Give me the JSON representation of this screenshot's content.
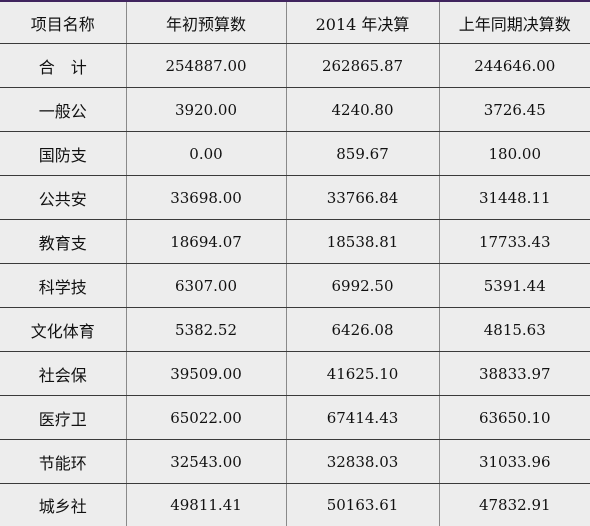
{
  "table": {
    "headers": [
      "项目名称",
      "年初预算数",
      "2014 年决算",
      "上年同期决算数"
    ],
    "rows": [
      {
        "name": "合　计",
        "budget": "254887.00",
        "final_2014": "262865.87",
        "prior": "244646.00"
      },
      {
        "name": "一般公",
        "budget": "3920.00",
        "final_2014": "4240.80",
        "prior": "3726.45"
      },
      {
        "name": "国防支",
        "budget": "0.00",
        "final_2014": "859.67",
        "prior": "180.00"
      },
      {
        "name": "公共安",
        "budget": "33698.00",
        "final_2014": "33766.84",
        "prior": "31448.11"
      },
      {
        "name": "教育支",
        "budget": "18694.07",
        "final_2014": "18538.81",
        "prior": "17733.43"
      },
      {
        "name": "科学技",
        "budget": "6307.00",
        "final_2014": "6992.50",
        "prior": "5391.44"
      },
      {
        "name": "文化体育",
        "budget": "5382.52",
        "final_2014": "6426.08",
        "prior": "4815.63"
      },
      {
        "name": "社会保",
        "budget": "39509.00",
        "final_2014": "41625.10",
        "prior": "38833.97"
      },
      {
        "name": "医疗卫",
        "budget": "65022.00",
        "final_2014": "67414.43",
        "prior": "63650.10"
      },
      {
        "name": "节能环",
        "budget": "32543.00",
        "final_2014": "32838.03",
        "prior": "31033.96"
      },
      {
        "name": "城乡社",
        "budget": "49811.41",
        "final_2014": "50163.61",
        "prior": "47832.91"
      }
    ]
  }
}
